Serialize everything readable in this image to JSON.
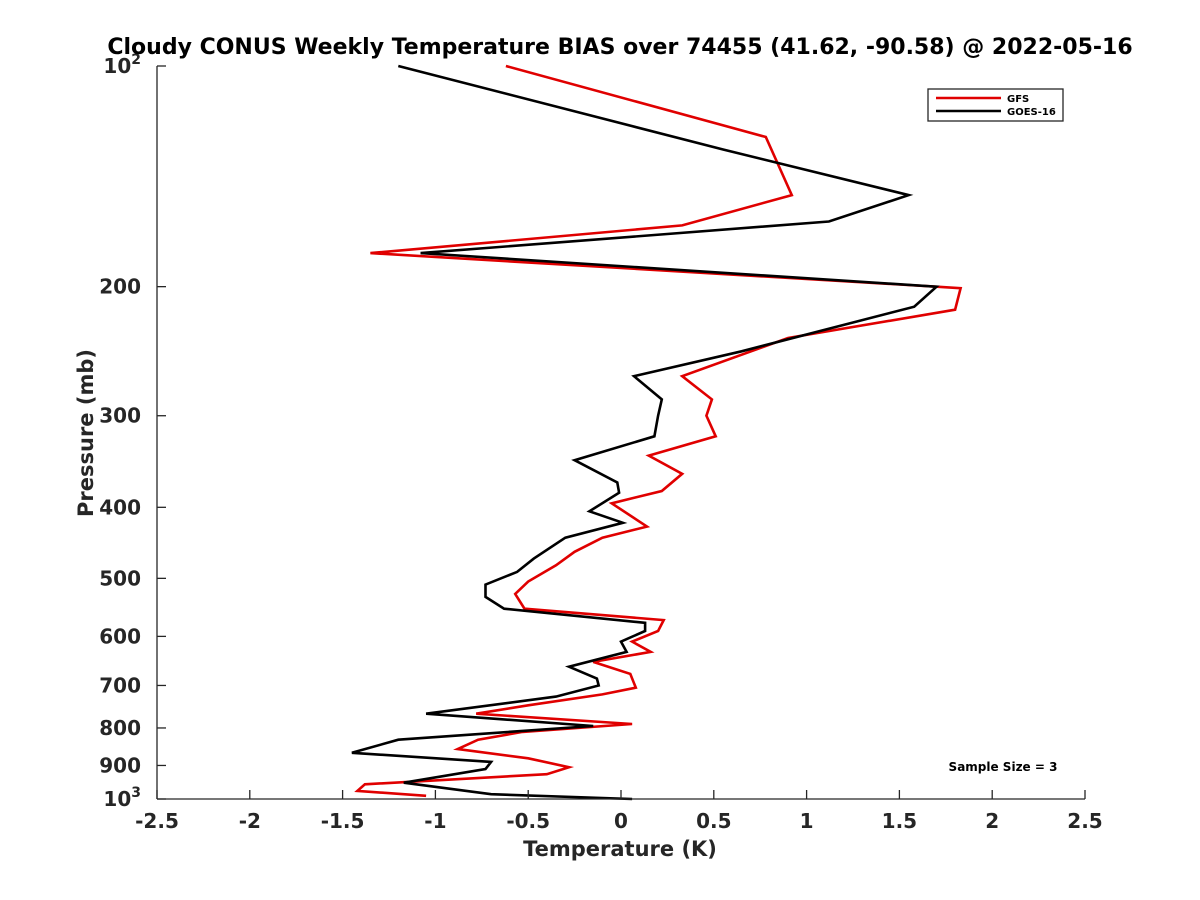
{
  "chart_data": {
    "type": "line",
    "title": "Cloudy CONUS Weekly Temperature BIAS over 74455 (41.62, -90.58) @ 2022-05-16",
    "xlabel": "Temperature (K)",
    "ylabel": "Pressure (mb)",
    "xlim": [
      -2.5,
      2.5
    ],
    "ylim": [
      1000,
      100
    ],
    "y_scale": "log",
    "y_reversed": true,
    "grid": false,
    "legend_position": "top-right",
    "annotation": "Sample Size = 3",
    "x_ticks": [
      "-2.5",
      "-2",
      "-1.5",
      "-1",
      "-0.5",
      "0",
      "0.5",
      "1",
      "1.5",
      "2",
      "2.5"
    ],
    "x_tick_values": [
      -2.5,
      -2,
      -1.5,
      -1,
      -0.5,
      0,
      0.5,
      1,
      1.5,
      2,
      2.5
    ],
    "y_ticks": [
      {
        "value": 100,
        "base": "10",
        "exp": "2"
      },
      {
        "value": 200,
        "label": "200"
      },
      {
        "value": 300,
        "label": "300"
      },
      {
        "value": 400,
        "label": "400"
      },
      {
        "value": 500,
        "label": "500"
      },
      {
        "value": 600,
        "label": "600"
      },
      {
        "value": 700,
        "label": "700"
      },
      {
        "value": 800,
        "label": "800"
      },
      {
        "value": 900,
        "label": "900"
      },
      {
        "value": 1000,
        "base": "10",
        "exp": "3"
      }
    ],
    "series": [
      {
        "name": "GFS",
        "color": "#e00000",
        "points": [
          [
            -0.62,
            100
          ],
          [
            0.78,
            125
          ],
          [
            0.92,
            150
          ],
          [
            0.33,
            165
          ],
          [
            -1.35,
            180
          ],
          [
            1.7,
            200
          ],
          [
            1.83,
            201
          ],
          [
            1.8,
            215
          ],
          [
            0.9,
            235
          ],
          [
            0.33,
            265
          ],
          [
            0.49,
            285
          ],
          [
            0.46,
            300
          ],
          [
            0.51,
            320
          ],
          [
            0.15,
            340
          ],
          [
            0.33,
            360
          ],
          [
            0.22,
            380
          ],
          [
            -0.05,
            395
          ],
          [
            0.14,
            425
          ],
          [
            -0.1,
            440
          ],
          [
            -0.25,
            460
          ],
          [
            -0.35,
            480
          ],
          [
            -0.5,
            505
          ],
          [
            -0.57,
            525
          ],
          [
            -0.52,
            550
          ],
          [
            0.23,
            570
          ],
          [
            0.2,
            590
          ],
          [
            0.06,
            610
          ],
          [
            0.16,
            630
          ],
          [
            -0.15,
            650
          ],
          [
            0.05,
            675
          ],
          [
            0.08,
            705
          ],
          [
            -0.1,
            720
          ],
          [
            -0.5,
            745
          ],
          [
            -0.78,
            765
          ],
          [
            0.06,
            790
          ],
          [
            -0.53,
            810
          ],
          [
            -0.77,
            830
          ],
          [
            -0.88,
            855
          ],
          [
            -0.5,
            880
          ],
          [
            -0.28,
            905
          ],
          [
            -0.4,
            925
          ],
          [
            -1.38,
            955
          ],
          [
            -1.42,
            975
          ],
          [
            -1.05,
            990
          ]
        ]
      },
      {
        "name": "GOES-16",
        "color": "#000000",
        "points": [
          [
            -1.2,
            100
          ],
          [
            0.55,
            130
          ],
          [
            1.55,
            150
          ],
          [
            1.12,
            163
          ],
          [
            -1.08,
            180
          ],
          [
            1.7,
            200
          ],
          [
            1.58,
            213
          ],
          [
            0.65,
            245
          ],
          [
            0.07,
            265
          ],
          [
            0.22,
            285
          ],
          [
            0.2,
            300
          ],
          [
            0.18,
            320
          ],
          [
            -0.25,
            345
          ],
          [
            -0.02,
            370
          ],
          [
            -0.01,
            382
          ],
          [
            -0.17,
            405
          ],
          [
            0.01,
            420
          ],
          [
            -0.3,
            440
          ],
          [
            -0.47,
            470
          ],
          [
            -0.56,
            490
          ],
          [
            -0.73,
            510
          ],
          [
            -0.73,
            530
          ],
          [
            -0.63,
            550
          ],
          [
            0.13,
            575
          ],
          [
            0.13,
            590
          ],
          [
            0.0,
            610
          ],
          [
            0.03,
            630
          ],
          [
            -0.28,
            660
          ],
          [
            -0.13,
            685
          ],
          [
            -0.12,
            700
          ],
          [
            -0.35,
            725
          ],
          [
            -1.05,
            765
          ],
          [
            -0.15,
            795
          ],
          [
            -1.2,
            830
          ],
          [
            -1.45,
            865
          ],
          [
            -0.7,
            890
          ],
          [
            -0.73,
            910
          ],
          [
            -1.17,
            950
          ],
          [
            -0.7,
            985
          ],
          [
            0.06,
            1000
          ]
        ]
      }
    ]
  }
}
